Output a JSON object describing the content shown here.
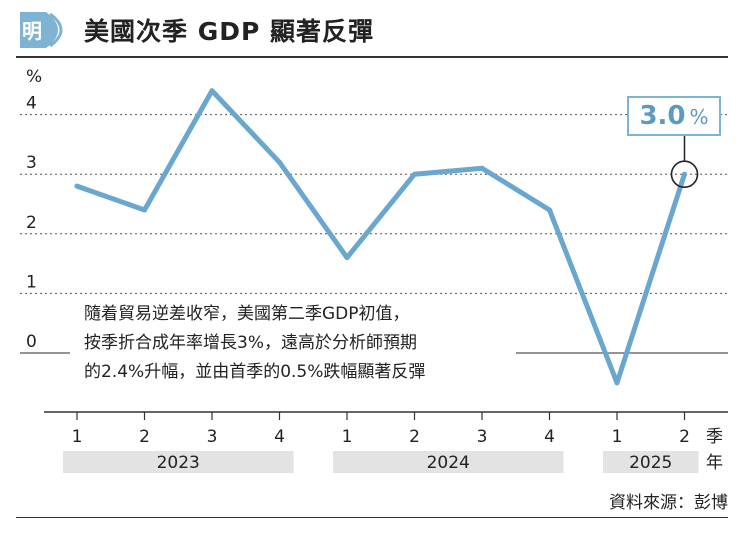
{
  "header": {
    "logo_text": "明",
    "title": "美國次季 GDP 顯著反彈"
  },
  "colors": {
    "line": "#6aa7cf",
    "year_band": "#e3e3e3",
    "grid": "#555555"
  },
  "chart_data": {
    "type": "line",
    "title": "美國次季 GDP 顯著反彈",
    "ylabel": "%",
    "xlabel_quarter": "季",
    "xlabel_year": "年",
    "ylim": [
      -1,
      4.9
    ],
    "yticks": [
      0,
      1,
      2,
      3,
      4
    ],
    "categories": [
      "1",
      "2",
      "3",
      "4",
      "1",
      "2",
      "3",
      "4",
      "1",
      "2"
    ],
    "years": [
      {
        "label": "2023",
        "start": 0,
        "end": 3
      },
      {
        "label": "2024",
        "start": 4,
        "end": 7
      },
      {
        "label": "2025",
        "start": 8,
        "end": 9
      }
    ],
    "series": [
      {
        "values": [
          2.8,
          2.4,
          4.4,
          3.2,
          1.6,
          3.0,
          3.1,
          2.4,
          -0.5,
          3.0
        ]
      }
    ],
    "grid": true,
    "highlight": {
      "index": 9,
      "value": "3.0",
      "unit": "%"
    }
  },
  "annotation": {
    "lines": [
      "隨着貿易逆差收窄，美國第二季GDP初值，",
      "按季折合成年率增長3%，遠高於分析師預期",
      "的2.4%升幅，並由首季的0.5%跌幅顯著反彈"
    ]
  },
  "source": "資料來源：彭博"
}
